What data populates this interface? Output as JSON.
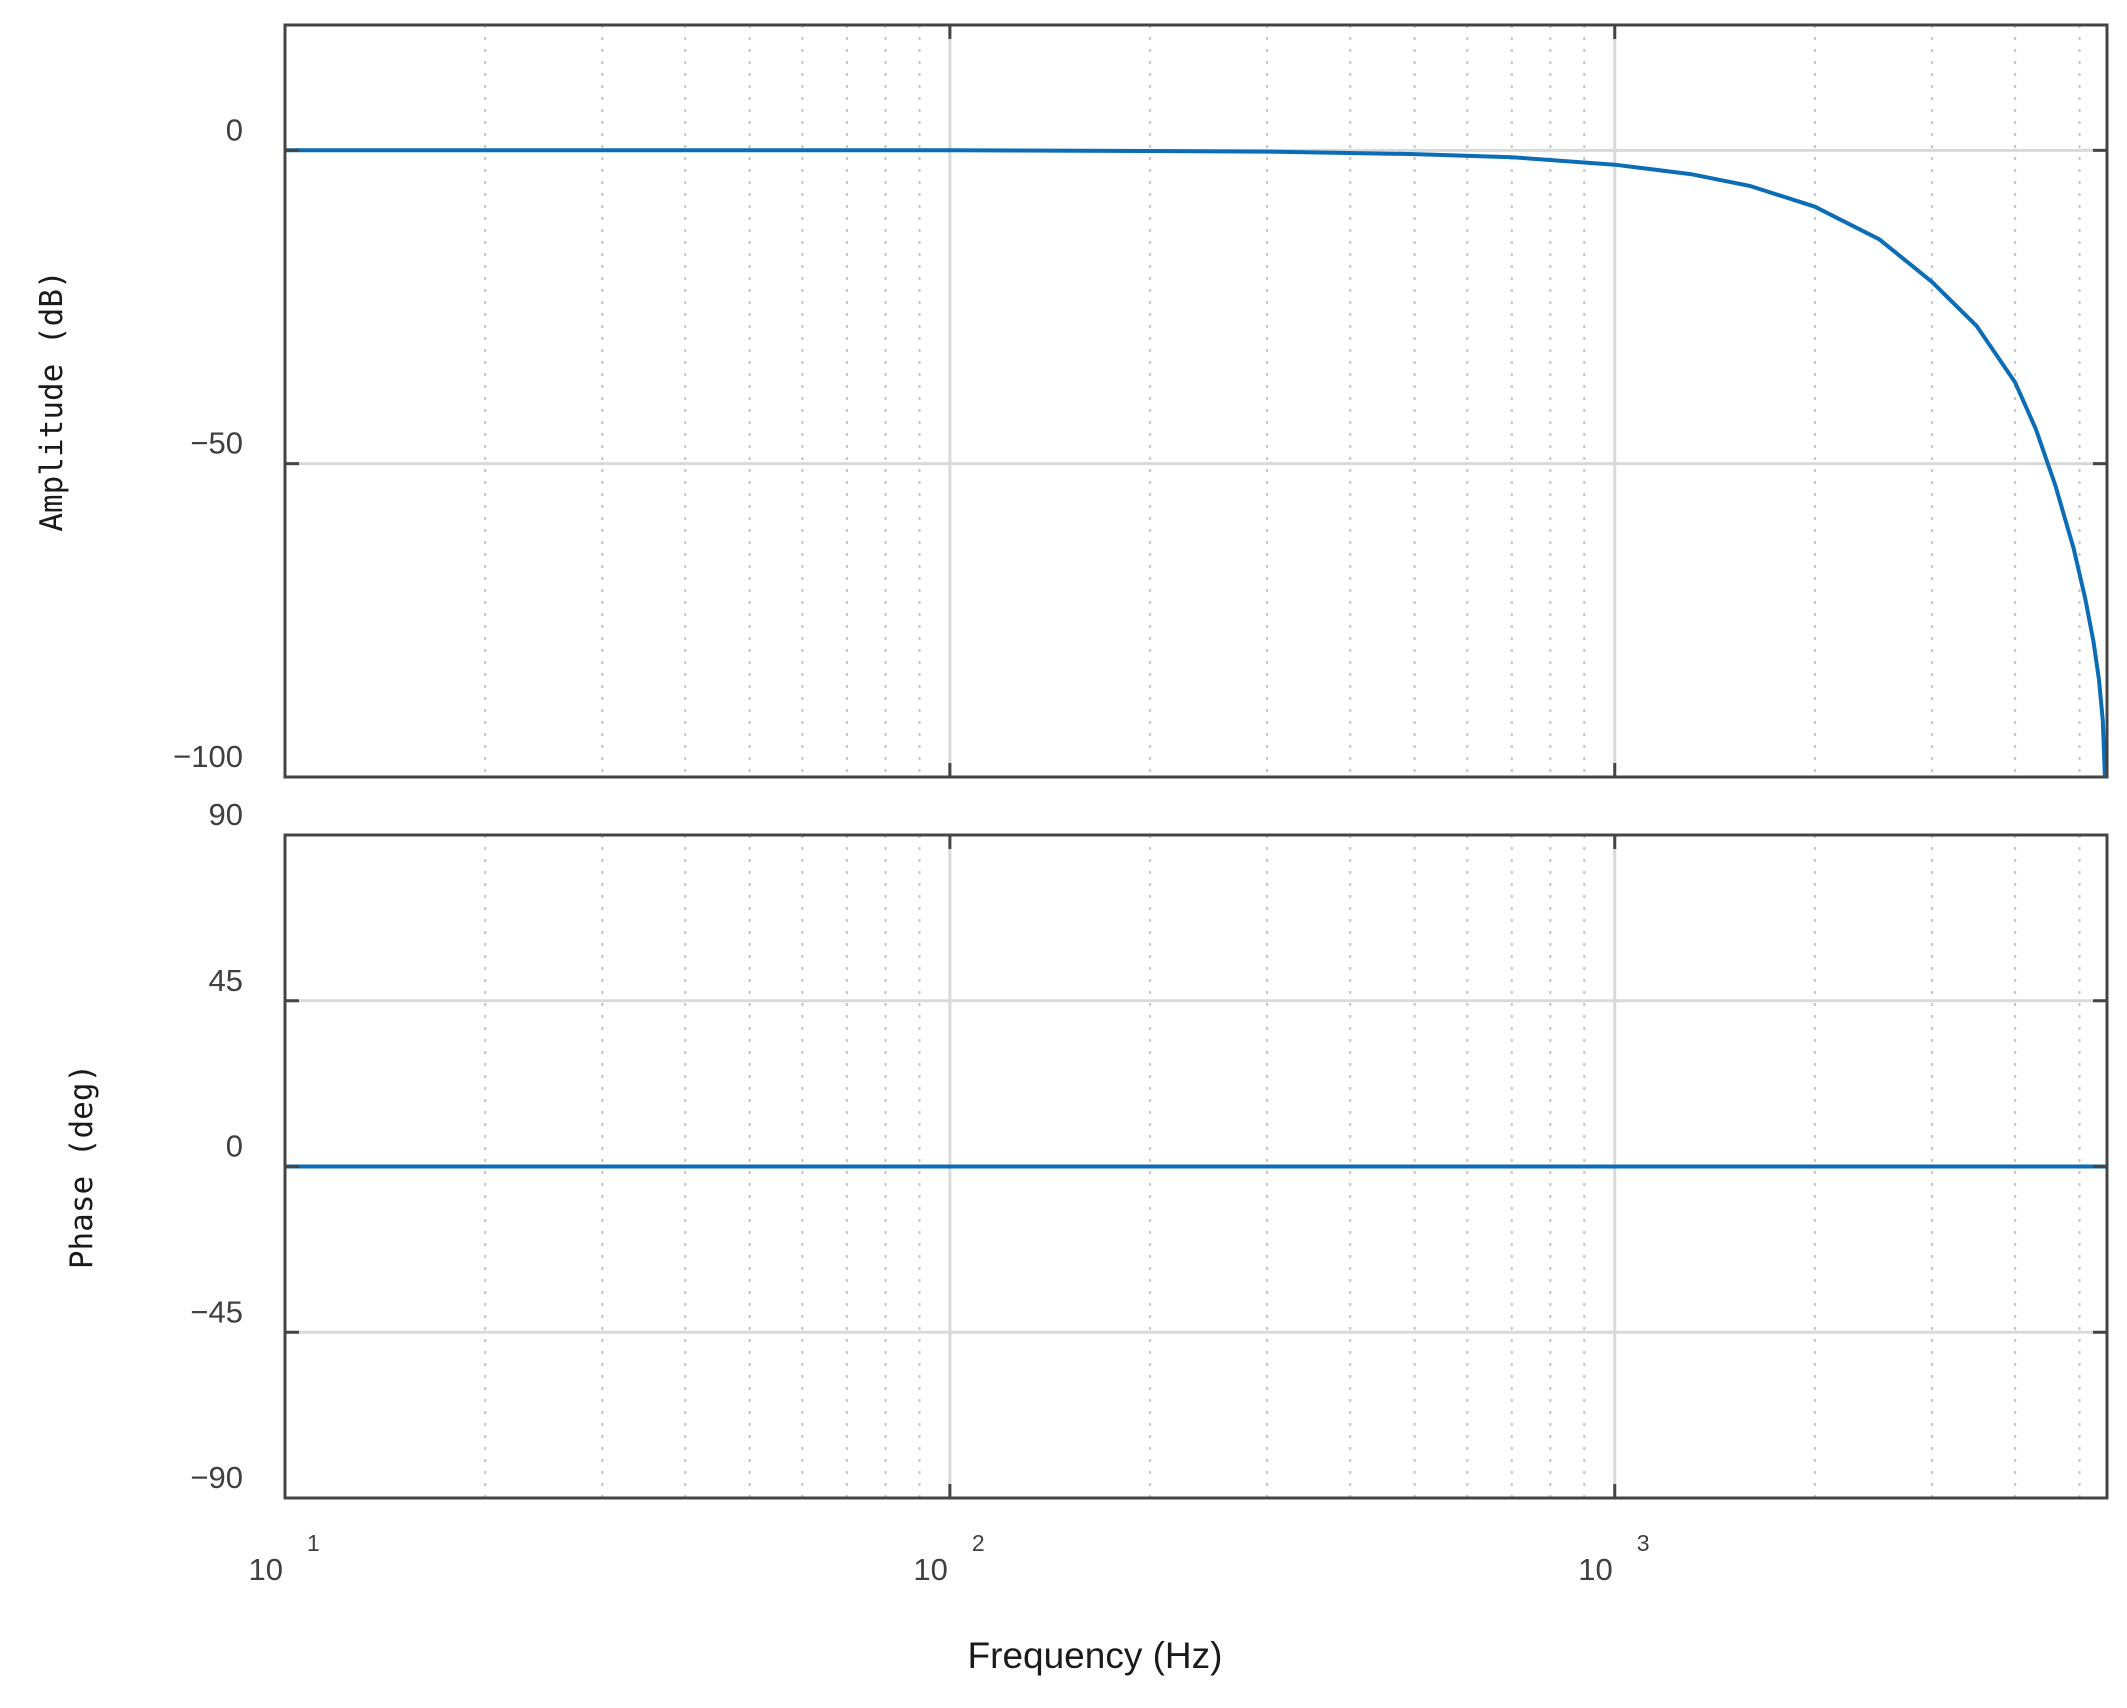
{
  "chart_data": [
    {
      "type": "line",
      "panel": "amplitude",
      "ylabel": "Amplitude (dB)",
      "xscale": "log",
      "xlim": [
        10,
        5500
      ],
      "ylim": [
        -100,
        20
      ],
      "yticks": [
        0,
        -50,
        -100
      ],
      "ytick_labels": [
        "0",
        "−50",
        "−100"
      ],
      "grid": true,
      "color": "#0b6db6",
      "series": [
        {
          "x": [
            10,
            30,
            100,
            200,
            300,
            500,
            700,
            1000,
            1300,
            1600,
            2000,
            2500,
            3000,
            3500,
            4000,
            4300,
            4600,
            4900,
            5100,
            5250,
            5350,
            5420,
            5460
          ],
          "y": [
            0,
            0,
            0,
            -0.1,
            -0.2,
            -0.6,
            -1.1,
            -2.3,
            -3.8,
            -5.7,
            -9.0,
            -14.2,
            -21.0,
            -28.0,
            -37.0,
            -44.5,
            -53.5,
            -63.5,
            -71.5,
            -78.5,
            -84.5,
            -91.0,
            -100.0
          ]
        }
      ]
    },
    {
      "type": "line",
      "panel": "phase",
      "ylabel": "Phase (deg)",
      "xlabel": "Frequency (Hz)",
      "xscale": "log",
      "xlim": [
        10,
        5500
      ],
      "ylim": [
        -90,
        90
      ],
      "yticks": [
        90,
        45,
        0,
        -45,
        -90
      ],
      "ytick_labels": [
        "90",
        "45",
        "0",
        "−45",
        "−90"
      ],
      "xticks": [
        10,
        100,
        1000
      ],
      "xtick_labels": [
        {
          "base": "10",
          "exp": "1"
        },
        {
          "base": "10",
          "exp": "2"
        },
        {
          "base": "10",
          "exp": "3"
        }
      ],
      "grid": true,
      "color": "#0b6db6",
      "series": [
        {
          "x": [
            10,
            5500
          ],
          "y": [
            0,
            0
          ]
        }
      ]
    }
  ]
}
